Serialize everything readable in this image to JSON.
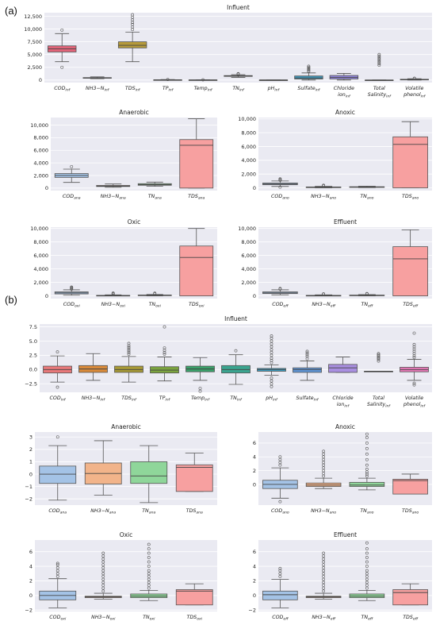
{
  "panel_labels": [
    "(a)",
    "(b)"
  ],
  "colors": {
    "a_inf": [
      "#e06479",
      "#8a8a8a",
      "#b59a3a",
      "#7a7a7a",
      "#9a9a9a",
      "#2f8a5b",
      "#8a8a8a",
      "#3f96b8",
      "#8f84d8",
      "#c260c2",
      "#999999"
    ],
    "a_stage": [
      "#a4c3e6",
      "#f2b48a",
      "#8fd69a",
      "#f7a0a0"
    ],
    "b_inf": [
      "#e8787a",
      "#d98a3a",
      "#a89a36",
      "#7ba33f",
      "#3aa26a",
      "#3aa48f",
      "#3a9ec4",
      "#5f95d6",
      "#a98fe0",
      "#cc78d0",
      "#e878b8"
    ],
    "b_stage": [
      "#a4c3e6",
      "#f2b48a",
      "#8fd69a",
      "#f7a0a0"
    ]
  },
  "chart_data": [
    {
      "id": "a_influent",
      "type": "box",
      "title": "Influent",
      "categories": [
        "COD_inf",
        "NH3−N_inf",
        "TDS_inf",
        "TP_inf",
        "Temp_inf",
        "TN_inf",
        "pH_inf",
        "Sulfate_inf",
        "Chloride ion_inf",
        "Total Salinity_inf",
        "Volatile phenol_inf"
      ],
      "yticks": [
        "0",
        "2,500",
        "5,000",
        "7,500",
        "10,000",
        "12,500"
      ],
      "ylim": [
        -500,
        13200
      ],
      "boxes": [
        {
          "q1": 5500,
          "median": 6100,
          "q3": 6700,
          "lo": 3600,
          "hi": 9100,
          "fliers": [
            9800,
            2500
          ]
        },
        {
          "q1": 380,
          "median": 420,
          "q3": 480,
          "lo": 260,
          "hi": 620,
          "fliers": []
        },
        {
          "q1": 6300,
          "median": 6800,
          "q3": 7500,
          "lo": 3600,
          "hi": 9400,
          "fliers": [
            9900,
            10400,
            10900,
            11300,
            11800,
            12300,
            12800
          ]
        },
        {
          "q1": 20,
          "median": 35,
          "q3": 50,
          "lo": 5,
          "hi": 90,
          "fliers": [
            100
          ]
        },
        {
          "q1": 18,
          "median": 22,
          "q3": 26,
          "lo": 10,
          "hi": 34,
          "fliers": [
            40
          ]
        },
        {
          "q1": 720,
          "median": 800,
          "q3": 870,
          "lo": 520,
          "hi": 1050,
          "fliers": [
            1150,
            1250
          ]
        },
        {
          "q1": 6,
          "median": 7,
          "q3": 8,
          "lo": 5,
          "hi": 9,
          "fliers": []
        },
        {
          "q1": 200,
          "median": 400,
          "q3": 800,
          "lo": 0,
          "hi": 1400,
          "fliers": [
            1700,
            1900,
            2100,
            2300,
            2500,
            2700
          ]
        },
        {
          "q1": 200,
          "median": 500,
          "q3": 900,
          "lo": 0,
          "hi": 1300,
          "fliers": []
        },
        {
          "q1": 0,
          "median": 0,
          "q3": 0,
          "lo": 0,
          "hi": 0,
          "fliers": [
            2900,
            3200,
            3500,
            3800,
            4100,
            4400,
            4700,
            5000
          ]
        },
        {
          "q1": 50,
          "median": 100,
          "q3": 150,
          "lo": 0,
          "hi": 250,
          "fliers": [
            300,
            350
          ]
        }
      ]
    },
    {
      "id": "a_anaerobic",
      "type": "box",
      "title": "Anaerobic",
      "categories": [
        "COD_ana",
        "NH3−N_ana",
        "TN_ana",
        "TDS_ana"
      ],
      "yticks": [
        "0",
        "2,000",
        "4,000",
        "6,000",
        "8,000",
        "10,000"
      ],
      "ylim": [
        -400,
        11200
      ],
      "boxes": [
        {
          "q1": 1700,
          "median": 2000,
          "q3": 2300,
          "lo": 900,
          "hi": 3000,
          "fliers": [
            3400
          ]
        },
        {
          "q1": 250,
          "median": 320,
          "q3": 420,
          "lo": 120,
          "hi": 650,
          "fliers": []
        },
        {
          "q1": 450,
          "median": 560,
          "q3": 700,
          "lo": 280,
          "hi": 950,
          "fliers": []
        },
        {
          "q1": 0,
          "median": 6800,
          "q3": 7700,
          "lo": 0,
          "hi": 11000,
          "fliers": []
        }
      ]
    },
    {
      "id": "a_anoxic",
      "type": "box",
      "title": "Anoxic",
      "categories": [
        "COD_ano",
        "NH3−N_ano",
        "TN_ano",
        "TDS_ano"
      ],
      "yticks": [
        "0",
        "2,000",
        "4,000",
        "6,000",
        "8,000",
        "10,000"
      ],
      "ylim": [
        -400,
        10200
      ],
      "boxes": [
        {
          "q1": 450,
          "median": 550,
          "q3": 700,
          "lo": 200,
          "hi": 1000,
          "fliers": [
            1100,
            1200,
            1300,
            100
          ]
        },
        {
          "q1": 60,
          "median": 90,
          "q3": 130,
          "lo": 0,
          "hi": 220,
          "fliers": [
            300,
            380
          ]
        },
        {
          "q1": 90,
          "median": 120,
          "q3": 160,
          "lo": 30,
          "hi": 250,
          "fliers": []
        },
        {
          "q1": 0,
          "median": 6300,
          "q3": 7400,
          "lo": 0,
          "hi": 9600,
          "fliers": []
        }
      ]
    },
    {
      "id": "a_oxic",
      "type": "box",
      "title": "Oxic",
      "categories": [
        "COD_oxi",
        "NH3−N_oxi",
        "TN_oxi",
        "TDS_oxi"
      ],
      "yticks": [
        "0",
        "2,000",
        "4,000",
        "6,000",
        "8,000",
        "10,000"
      ],
      "ylim": [
        -400,
        10200
      ],
      "boxes": [
        {
          "q1": 300,
          "median": 450,
          "q3": 600,
          "lo": 100,
          "hi": 900,
          "fliers": [
            1000,
            1100,
            1200,
            1300
          ]
        },
        {
          "q1": 30,
          "median": 50,
          "q3": 80,
          "lo": 0,
          "hi": 150,
          "fliers": [
            250,
            350,
            420
          ]
        },
        {
          "q1": 60,
          "median": 90,
          "q3": 130,
          "lo": 0,
          "hi": 220,
          "fliers": [
            300,
            400
          ]
        },
        {
          "q1": 0,
          "median": 5700,
          "q3": 7400,
          "lo": 0,
          "hi": 10000,
          "fliers": []
        }
      ]
    },
    {
      "id": "a_effluent",
      "type": "box",
      "title": "Effluent",
      "categories": [
        "COD_eff",
        "NH3−N_eff",
        "TN_eff",
        "TDS_eff"
      ],
      "yticks": [
        "0",
        "2,000",
        "4,000",
        "6,000",
        "8,000",
        "10,000"
      ],
      "ylim": [
        -400,
        10200
      ],
      "boxes": [
        {
          "q1": 350,
          "median": 450,
          "q3": 600,
          "lo": 150,
          "hi": 900,
          "fliers": [
            1000,
            1100
          ]
        },
        {
          "q1": 30,
          "median": 50,
          "q3": 80,
          "lo": 0,
          "hi": 150,
          "fliers": [
            250,
            300
          ]
        },
        {
          "q1": 50,
          "median": 80,
          "q3": 120,
          "lo": 0,
          "hi": 200,
          "fliers": [
            300,
            350
          ]
        },
        {
          "q1": 0,
          "median": 5500,
          "q3": 7300,
          "lo": 0,
          "hi": 9800,
          "fliers": []
        }
      ]
    },
    {
      "id": "b_influent",
      "type": "box",
      "title": "Influent",
      "categories": [
        "COD_inf",
        "NH3−N_inf",
        "TDS_inf",
        "TP_inf",
        "Temp_inf",
        "TN_inf",
        "pH_inf",
        "Sulfate_inf",
        "Chloride ion_inf",
        "Total Salinity_inf",
        "Volatile phenol_inf"
      ],
      "yticks": [
        "−2.5",
        "0.0",
        "2.5",
        "5.0",
        "7.5"
      ],
      "ylim": [
        -4.0,
        8.0
      ],
      "boxes": [
        {
          "q1": -0.6,
          "median": 0.0,
          "q3": 0.6,
          "lo": -2.2,
          "hi": 2.4,
          "fliers": [
            3.1,
            -3.1
          ]
        },
        {
          "q1": -0.5,
          "median": 0.1,
          "q3": 0.7,
          "lo": -1.9,
          "hi": 2.8,
          "fliers": []
        },
        {
          "q1": -0.5,
          "median": 0.0,
          "q3": 0.6,
          "lo": -2.2,
          "hi": 2.3,
          "fliers": [
            2.7,
            3.0,
            3.3,
            3.6,
            3.9,
            4.2,
            4.6
          ]
        },
        {
          "q1": -0.6,
          "median": -0.1,
          "q3": 0.5,
          "lo": -2.0,
          "hi": 2.2,
          "fliers": [
            2.7,
            3.0,
            3.4,
            3.8,
            7.5
          ]
        },
        {
          "q1": -0.4,
          "median": 0.1,
          "q3": 0.6,
          "lo": -1.9,
          "hi": 2.1,
          "fliers": [
            -3.3,
            -3.8
          ]
        },
        {
          "q1": -0.6,
          "median": 0.0,
          "q3": 0.7,
          "lo": -2.6,
          "hi": 2.6,
          "fliers": [
            3.3
          ]
        },
        {
          "q1": -0.3,
          "median": 0.0,
          "q3": 0.2,
          "lo": -1.0,
          "hi": 0.8,
          "fliers": [
            1.2,
            1.6,
            2.0,
            2.5,
            3.0,
            3.5,
            4.0,
            4.5,
            5.0,
            5.5,
            5.9,
            -1.5,
            -2.0,
            -2.5,
            -3.0
          ]
        },
        {
          "q1": -0.5,
          "median": 0.0,
          "q3": 0.3,
          "lo": -1.9,
          "hi": 1.5,
          "fliers": [
            1.9,
            2.3,
            2.6,
            2.9,
            3.2
          ]
        },
        {
          "q1": -0.5,
          "median": 0.3,
          "q3": 0.9,
          "lo": -0.5,
          "hi": 2.2,
          "fliers": []
        },
        {
          "q1": -0.3,
          "median": -0.3,
          "q3": -0.3,
          "lo": -0.3,
          "hi": -0.3,
          "fliers": [
            1.5,
            1.8,
            2.0,
            2.2,
            2.4,
            2.6,
            2.8
          ]
        },
        {
          "q1": -0.4,
          "median": 0.0,
          "q3": 0.4,
          "lo": -1.9,
          "hi": 1.8,
          "fliers": [
            2.1,
            2.4,
            2.8,
            3.2,
            3.6,
            4.0,
            4.4,
            6.4,
            -2.4,
            -2.7
          ]
        }
      ]
    },
    {
      "id": "b_anaerobic",
      "type": "box",
      "title": "Anaerobic",
      "categories": [
        "COD_ana",
        "NH3−N_ana",
        "TN_ana",
        "TDS_ana"
      ],
      "yticks": [
        "−2",
        "−1",
        "0",
        "1",
        "2",
        "3"
      ],
      "ylim": [
        -2.5,
        3.4
      ],
      "boxes": [
        {
          "q1": -0.75,
          "median": 0.0,
          "q3": 0.65,
          "lo": -2.1,
          "hi": 2.3,
          "fliers": [
            3.0
          ]
        },
        {
          "q1": -0.8,
          "median": 0.05,
          "q3": 0.9,
          "lo": -1.7,
          "hi": 2.7,
          "fliers": []
        },
        {
          "q1": -0.75,
          "median": -0.15,
          "q3": 1.0,
          "lo": -2.3,
          "hi": 2.3,
          "fliers": []
        },
        {
          "q1": -1.4,
          "median": 0.55,
          "q3": 0.75,
          "lo": -1.4,
          "hi": 1.7,
          "fliers": []
        }
      ]
    },
    {
      "id": "b_anoxic",
      "type": "box",
      "title": "Anoxic",
      "categories": [
        "COD_ano",
        "NH3−N_ano",
        "TN_ano",
        "TDS_ano"
      ],
      "yticks": [
        "0",
        "2",
        "4",
        "6"
      ],
      "ylim": [
        -3.0,
        7.6
      ],
      "boxes": [
        {
          "q1": -0.6,
          "median": 0.0,
          "q3": 0.6,
          "lo": -2.0,
          "hi": 2.4,
          "fliers": [
            2.8,
            3.2,
            3.6,
            4.0,
            -2.5
          ]
        },
        {
          "q1": -0.3,
          "median": -0.1,
          "q3": 0.2,
          "lo": -0.6,
          "hi": 0.9,
          "fliers": [
            1.2,
            1.6,
            2.0,
            2.4,
            2.8,
            3.2,
            3.6,
            4.0,
            4.4,
            4.8
          ]
        },
        {
          "q1": -0.3,
          "median": -0.1,
          "q3": 0.3,
          "lo": -0.8,
          "hi": 0.9,
          "fliers": [
            1.2,
            1.5,
            1.8,
            2.2,
            2.8,
            3.6,
            4.4,
            5.2,
            6.0,
            6.8,
            7.3
          ]
        },
        {
          "q1": -1.4,
          "median": 0.55,
          "q3": 0.75,
          "lo": -1.4,
          "hi": 1.5,
          "fliers": []
        }
      ]
    },
    {
      "id": "b_oxic",
      "type": "box",
      "title": "Oxic",
      "categories": [
        "COD_oxi",
        "NH3−N_oxi",
        "TN_oxi",
        "TDS_oxi"
      ],
      "yticks": [
        "−2",
        "0",
        "2",
        "4",
        "6"
      ],
      "ylim": [
        -2.2,
        7.6
      ],
      "boxes": [
        {
          "q1": -0.6,
          "median": 0.0,
          "q3": 0.6,
          "lo": -1.7,
          "hi": 2.3,
          "fliers": [
            2.6,
            3.0,
            3.4,
            3.8,
            4.2,
            4.4
          ]
        },
        {
          "q1": -0.3,
          "median": -0.2,
          "q3": -0.1,
          "lo": -0.5,
          "hi": 0.3,
          "fliers": [
            0.6,
            1.0,
            1.4,
            1.8,
            2.2,
            2.6,
            3.0,
            3.4,
            3.8,
            4.2,
            4.6,
            5.0,
            5.4,
            5.8
          ]
        },
        {
          "q1": -0.3,
          "median": -0.1,
          "q3": 0.2,
          "lo": -0.7,
          "hi": 0.7,
          "fliers": [
            1.0,
            1.4,
            1.8,
            2.2,
            2.6,
            3.0,
            3.4,
            4.0,
            4.6,
            5.2,
            5.8,
            6.4,
            7.0
          ]
        },
        {
          "q1": -1.3,
          "median": 0.6,
          "q3": 0.8,
          "lo": -1.3,
          "hi": 1.6,
          "fliers": []
        }
      ]
    },
    {
      "id": "b_effluent",
      "type": "box",
      "title": "Effluent",
      "categories": [
        "COD_eff",
        "NH3−N_eff",
        "TN_eff",
        "TDS_eff"
      ],
      "yticks": [
        "−2",
        "0",
        "2",
        "4",
        "6"
      ],
      "ylim": [
        -2.2,
        7.6
      ],
      "boxes": [
        {
          "q1": -0.6,
          "median": 0.1,
          "q3": 0.6,
          "lo": -1.7,
          "hi": 2.2,
          "fliers": [
            2.6,
            3.0,
            3.4,
            3.7
          ]
        },
        {
          "q1": -0.3,
          "median": -0.2,
          "q3": -0.1,
          "lo": -0.5,
          "hi": 0.3,
          "fliers": [
            0.6,
            1.0,
            1.4,
            1.8,
            2.2,
            2.6,
            3.0,
            3.4,
            3.8,
            4.2,
            4.6,
            5.0,
            5.4,
            5.8
          ]
        },
        {
          "q1": -0.3,
          "median": -0.1,
          "q3": 0.2,
          "lo": -0.7,
          "hi": 0.7,
          "fliers": [
            1.0,
            1.4,
            1.8,
            2.2,
            2.6,
            3.0,
            3.4,
            4.0,
            4.6,
            5.2,
            5.8,
            6.4,
            7.2
          ]
        },
        {
          "q1": -1.3,
          "median": 0.4,
          "q3": 0.8,
          "lo": -1.3,
          "hi": 1.6,
          "fliers": []
        }
      ]
    }
  ]
}
